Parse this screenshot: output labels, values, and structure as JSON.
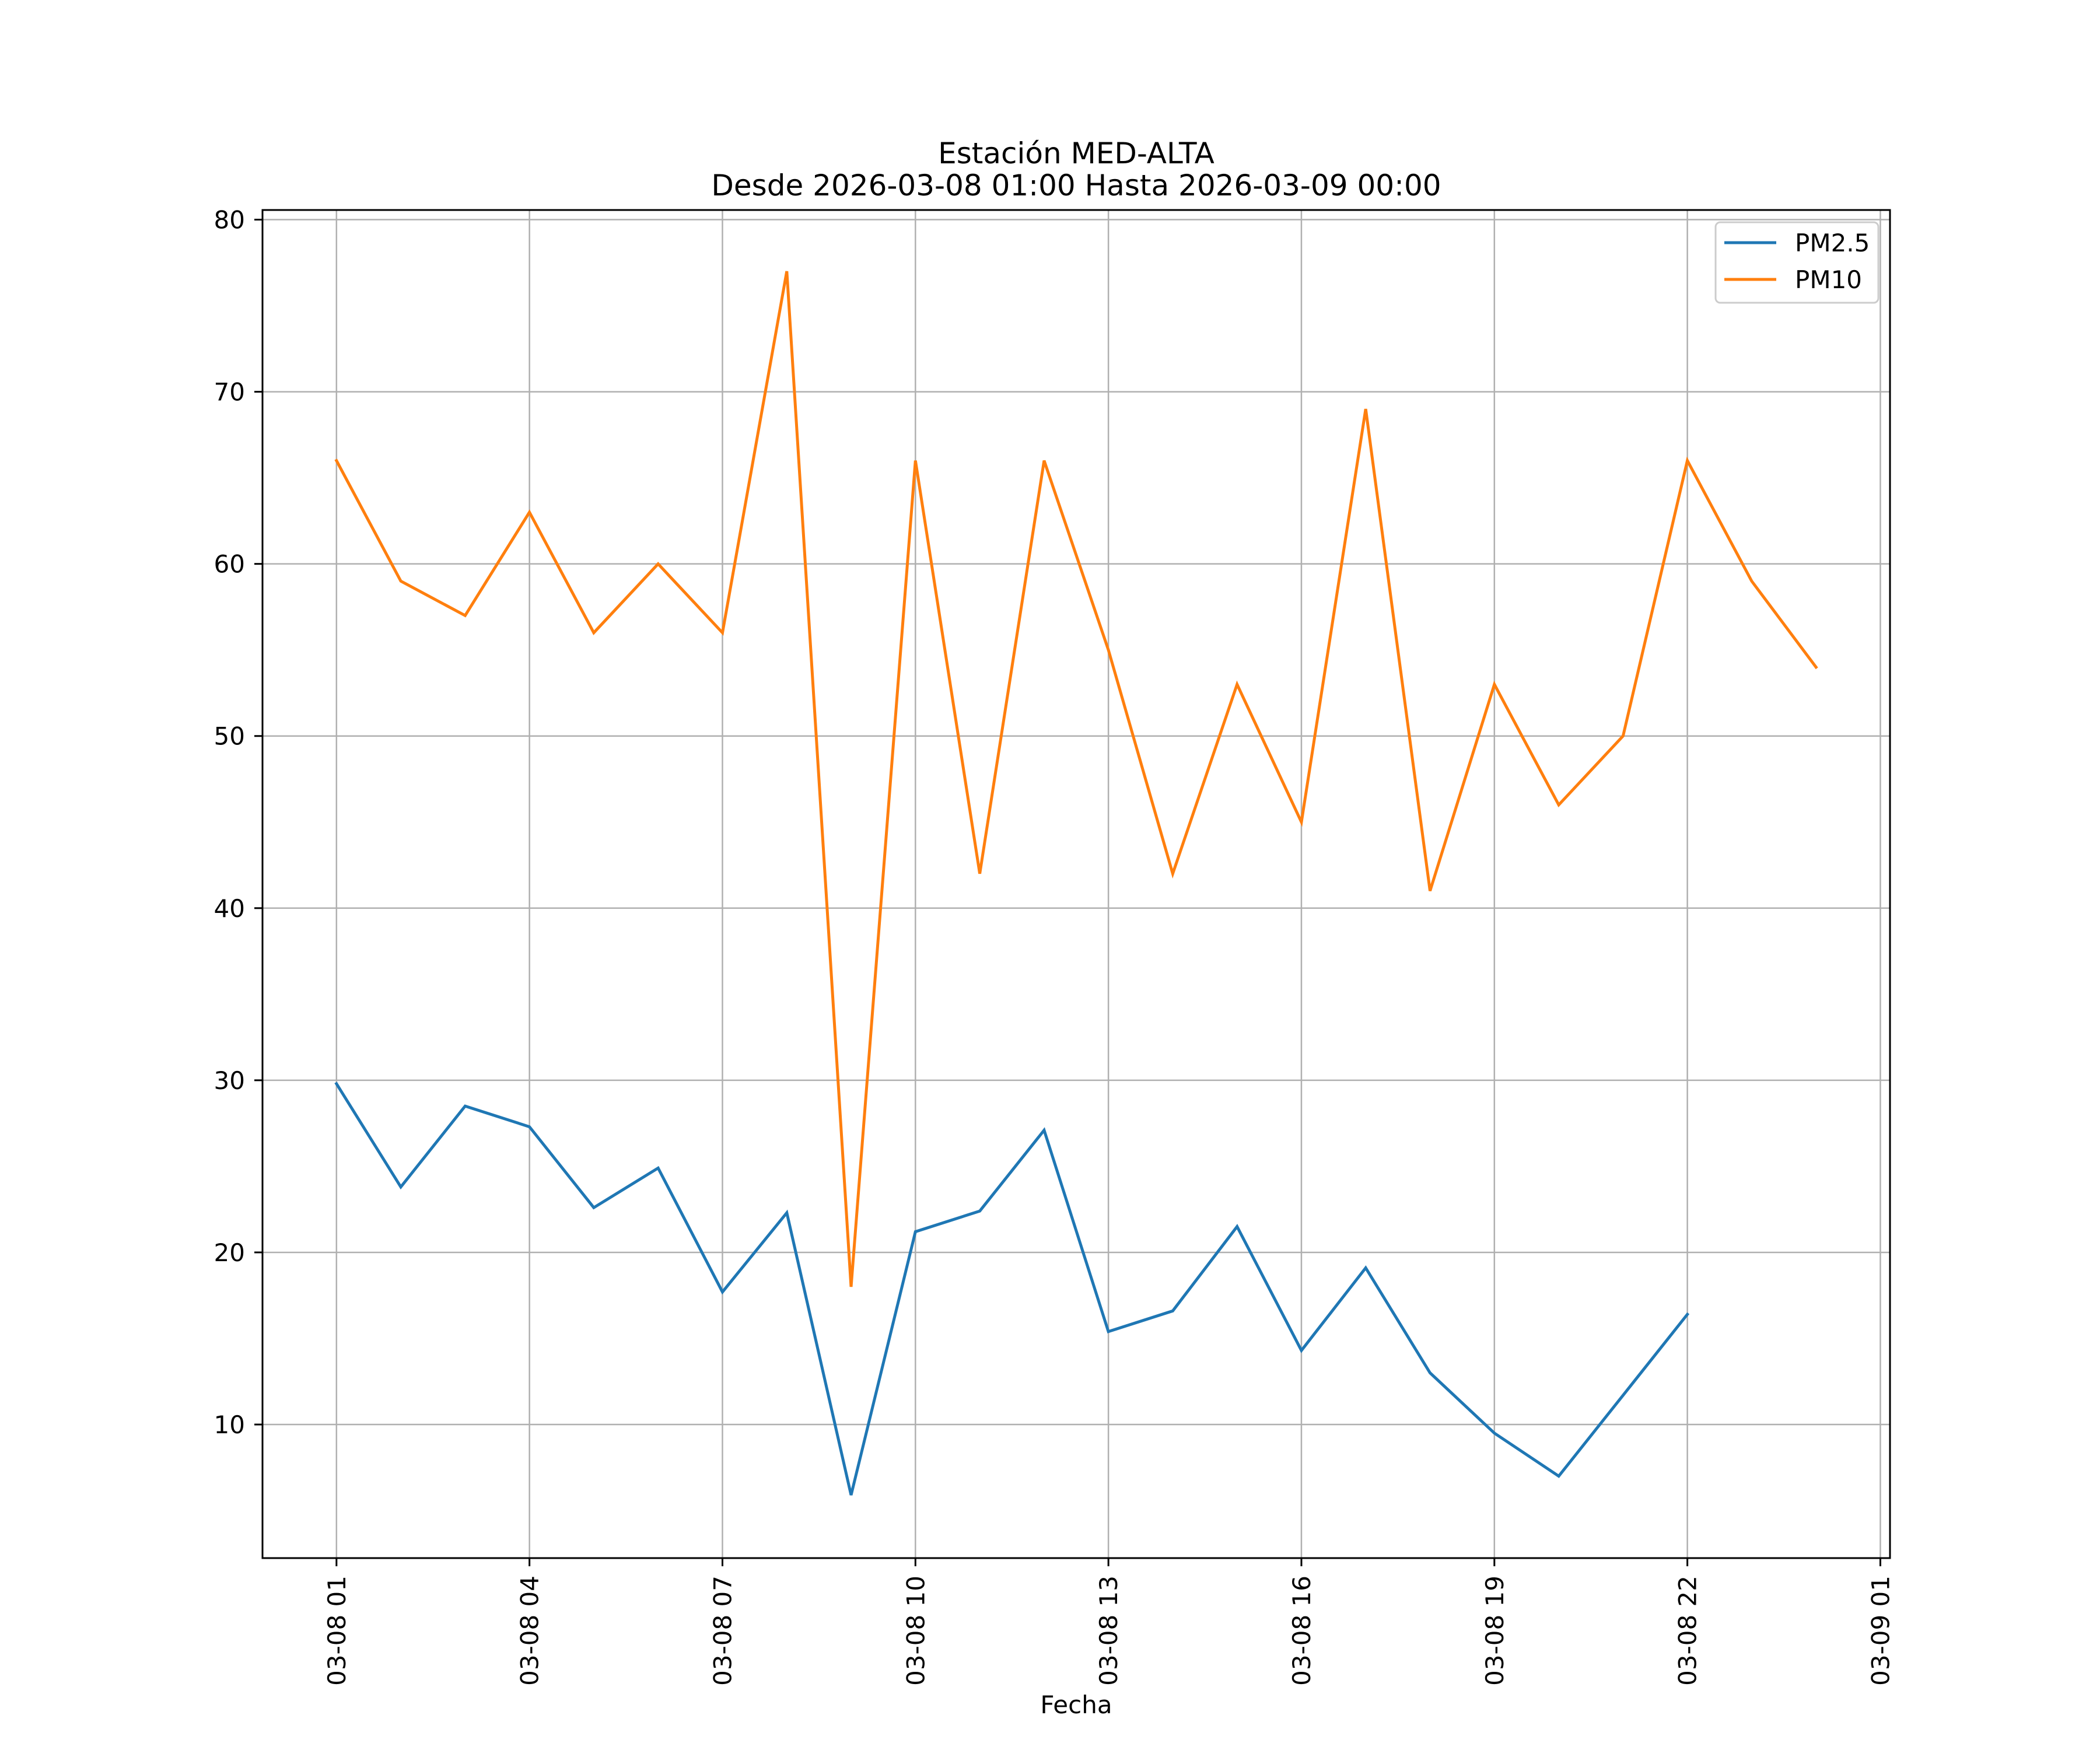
{
  "chart_data": {
    "type": "line",
    "title": "Estación MED-ALTA",
    "subtitle": "Desde 2026-03-08 01:00 Hasta 2026-03-09 00:00",
    "xlabel": "Fecha",
    "ylabel": "",
    "x": [
      "2026-03-08 01:00",
      "2026-03-08 02:00",
      "2026-03-08 03:00",
      "2026-03-08 04:00",
      "2026-03-08 05:00",
      "2026-03-08 06:00",
      "2026-03-08 07:00",
      "2026-03-08 08:00",
      "2026-03-08 09:00",
      "2026-03-08 10:00",
      "2026-03-08 11:00",
      "2026-03-08 12:00",
      "2026-03-08 13:00",
      "2026-03-08 14:00",
      "2026-03-08 15:00",
      "2026-03-08 16:00",
      "2026-03-08 17:00",
      "2026-03-08 18:00",
      "2026-03-08 19:00",
      "2026-03-08 20:00",
      "2026-03-08 21:00",
      "2026-03-08 22:00",
      "2026-03-08 23:00",
      "2026-03-09 00:00"
    ],
    "x_hours_from_start": [
      0,
      1,
      2,
      3,
      4,
      5,
      6,
      7,
      8,
      9,
      10,
      11,
      12,
      13,
      14,
      15,
      16,
      17,
      18,
      19,
      20,
      21,
      22,
      23
    ],
    "series": [
      {
        "name": "PM2.5",
        "color": "#1f77b4",
        "values": [
          29.8,
          23.8,
          28.5,
          27.3,
          22.6,
          24.9,
          17.7,
          22.3,
          5.9,
          21.2,
          22.4,
          27.1,
          15.4,
          16.6,
          21.5,
          14.3,
          19.1,
          13.0,
          9.5,
          7.0,
          11.7,
          16.4,
          null,
          null
        ]
      },
      {
        "name": "PM10",
        "color": "#ff7f0e",
        "values": [
          66,
          59,
          57,
          63,
          56,
          60,
          56,
          77,
          18,
          66,
          42,
          66,
          55,
          42,
          53,
          45,
          69,
          41,
          53,
          46,
          50,
          66,
          59,
          54
        ]
      }
    ],
    "xlim_hours": [
      -1.15,
      24.15
    ],
    "ylim": [
      2.24,
      80.56
    ],
    "xticks": [
      {
        "hour": 0,
        "label": "03-08 01"
      },
      {
        "hour": 3,
        "label": "03-08 04"
      },
      {
        "hour": 6,
        "label": "03-08 07"
      },
      {
        "hour": 9,
        "label": "03-08 10"
      },
      {
        "hour": 12,
        "label": "03-08 13"
      },
      {
        "hour": 15,
        "label": "03-08 16"
      },
      {
        "hour": 18,
        "label": "03-08 19"
      },
      {
        "hour": 21,
        "label": "03-08 22"
      },
      {
        "hour": 24,
        "label": "03-09 01"
      }
    ],
    "yticks": [
      {
        "value": 10,
        "label": "10"
      },
      {
        "value": 20,
        "label": "20"
      },
      {
        "value": 30,
        "label": "30"
      },
      {
        "value": 40,
        "label": "40"
      },
      {
        "value": 50,
        "label": "50"
      },
      {
        "value": 60,
        "label": "60"
      },
      {
        "value": 70,
        "label": "70"
      },
      {
        "value": 80,
        "label": "80"
      }
    ],
    "grid": true,
    "legend_position": "top-right",
    "grid_color": "#b0b0b0",
    "axis_color": "#000000"
  }
}
